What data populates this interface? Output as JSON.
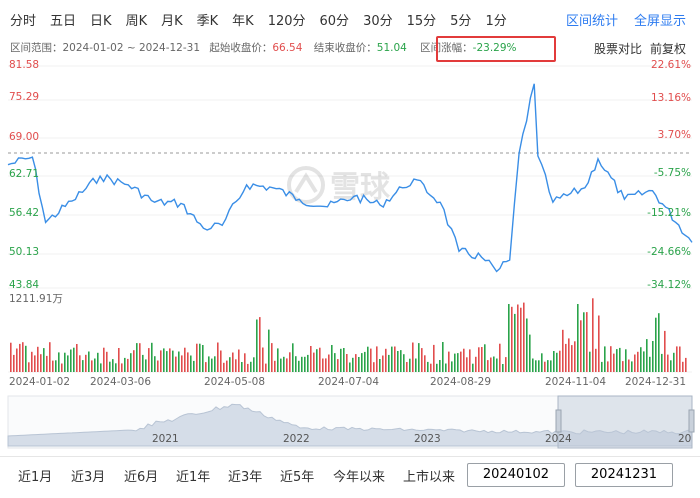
{
  "toolbar": {
    "timeframes": [
      "分时",
      "五日",
      "日K",
      "周K",
      "月K",
      "季K",
      "年K",
      "120分",
      "60分",
      "30分",
      "15分",
      "5分",
      "1分"
    ],
    "interval_stats": "区间统计",
    "fullscreen": "全屏显示"
  },
  "info": {
    "range_label": "区间范围：",
    "range_value": "2024-01-02 ~ 2024-12-31",
    "start_close_label": "起始收盘价：",
    "start_close_value": "66.54",
    "end_close_label": "结束收盘价：",
    "end_close_value": "51.04",
    "change_label": "区间涨幅：",
    "change_value": "-23.29%",
    "compare": "股票对比",
    "adjust": "前复权"
  },
  "axes": {
    "price_ticks": [
      "81.58",
      "75.29",
      "69.00",
      "62.71",
      "56.42",
      "50.13",
      "43.84"
    ],
    "pct_ticks": [
      "22.61%",
      "13.16%",
      "3.70%",
      "-5.75%",
      "-15.21%",
      "-24.66%",
      "-34.12%"
    ],
    "volume_max": "1211.91万",
    "dates": [
      "2024-01-02",
      "2024-03-06",
      "2024-05-08",
      "2024-07-04",
      "2024-08-29",
      "2024-11-04",
      "2024-12-31"
    ],
    "overview_years": [
      "2021",
      "2022",
      "2023",
      "2024",
      "20"
    ]
  },
  "watermark": "雪球",
  "colors": {
    "line": "#3a8ee6",
    "up": "#e14d4d",
    "down": "#2aa34a",
    "accent": "#2e7cf0",
    "highlight": "#e23b3b"
  },
  "chart_data": {
    "type": "line",
    "title": "",
    "ylabel": "",
    "ylim": [
      43.84,
      81.58
    ],
    "reference_close": 66.54,
    "x": [
      "2024-01-02",
      "2024-01-15",
      "2024-01-22",
      "2024-02-05",
      "2024-02-20",
      "2024-03-06",
      "2024-03-20",
      "2024-04-03",
      "2024-04-15",
      "2024-04-25",
      "2024-05-08",
      "2024-05-22",
      "2024-06-05",
      "2024-06-20",
      "2024-07-04",
      "2024-07-18",
      "2024-07-30",
      "2024-08-05",
      "2024-08-19",
      "2024-08-29",
      "2024-09-10",
      "2024-09-18",
      "2024-09-25",
      "2024-09-30",
      "2024-10-08",
      "2024-10-10",
      "2024-10-18",
      "2024-11-04",
      "2024-11-11",
      "2024-11-25",
      "2024-12-10",
      "2024-12-31"
    ],
    "series": [
      {
        "values": [
          64.5,
          65.8,
          54.5,
          58.2,
          62.5,
          61.0,
          58.0,
          57.8,
          53.5,
          54.0,
          61.0,
          60.5,
          58.5,
          57.2,
          59.0,
          57.5,
          60.5,
          62.0,
          58.0,
          49.5,
          48.5,
          46.0,
          48.0,
          66.5,
          78.5,
          66.0,
          58.0,
          60.5,
          65.5,
          58.5,
          60.0,
          51.04
        ]
      }
    ],
    "volume": {
      "label": "1211.91万",
      "series_max": 1211.91
    }
  }
}
